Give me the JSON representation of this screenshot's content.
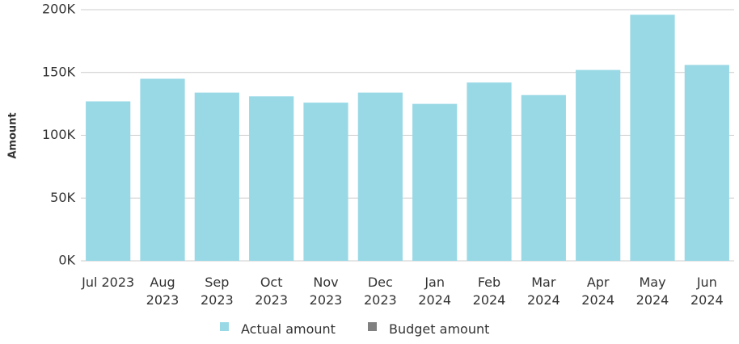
{
  "chart_data": {
    "type": "bar",
    "y_axis_label": "Amount",
    "categories": [
      "Jul 2023",
      "Aug 2023",
      "Sep 2023",
      "Oct 2023",
      "Nov 2023",
      "Dec 2023",
      "Jan 2024",
      "Feb 2024",
      "Mar 2024",
      "Apr 2024",
      "May 2024",
      "Jun 2024"
    ],
    "series": [
      {
        "name": "Actual amount",
        "color": "#99d9e6",
        "values": [
          127000,
          145000,
          134000,
          131000,
          126000,
          134000,
          125000,
          142000,
          132000,
          152000,
          196000,
          156000
        ]
      },
      {
        "name": "Budget amount",
        "color": "#808080",
        "values": [
          null,
          null,
          null,
          null,
          null,
          null,
          null,
          null,
          null,
          null,
          null,
          null
        ]
      }
    ],
    "ylim": [
      0,
      200000
    ],
    "yticks": [
      {
        "value": 0,
        "label": "0K"
      },
      {
        "value": 50000,
        "label": "50K"
      },
      {
        "value": 100000,
        "label": "100K"
      },
      {
        "value": 150000,
        "label": "150K"
      },
      {
        "value": 200000,
        "label": "200K"
      }
    ],
    "grid": true
  }
}
